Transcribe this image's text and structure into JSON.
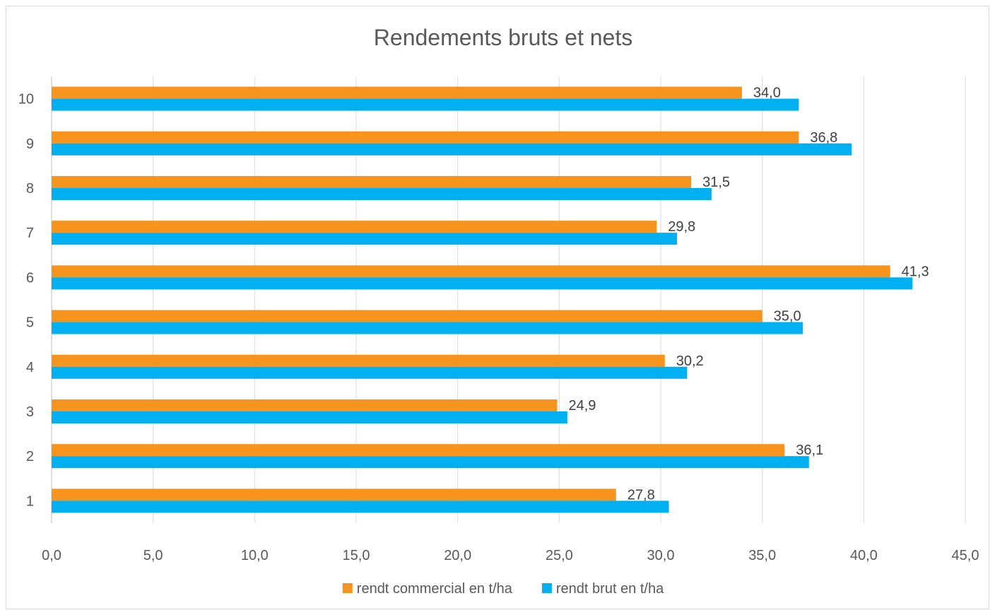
{
  "chart_data": {
    "type": "bar",
    "orientation": "horizontal",
    "title": "Rendements bruts et nets",
    "categories": [
      "1",
      "2",
      "3",
      "4",
      "5",
      "6",
      "7",
      "8",
      "9",
      "10"
    ],
    "series": [
      {
        "name": "rendt commercial en t/ha",
        "color": "#F7941D",
        "values": [
          27.8,
          36.1,
          24.9,
          30.2,
          35.0,
          41.3,
          29.8,
          31.5,
          36.8,
          34.0
        ],
        "labels": [
          "27,8",
          "36,1",
          "24,9",
          "30,2",
          "35,0",
          "41,3",
          "29,8",
          "31,5",
          "36,8",
          "34,0"
        ]
      },
      {
        "name": "rendt brut en t/ha",
        "color": "#00B0F0",
        "values": [
          30.4,
          37.3,
          25.4,
          31.3,
          37.0,
          42.4,
          30.8,
          32.5,
          39.4,
          36.8
        ]
      }
    ],
    "xlim": [
      0,
      45
    ],
    "xticks": [
      "0,0",
      "5,0",
      "10,0",
      "15,0",
      "20,0",
      "25,0",
      "30,0",
      "35,0",
      "40,0",
      "45,0"
    ],
    "grid": true,
    "legend_position": "bottom"
  }
}
